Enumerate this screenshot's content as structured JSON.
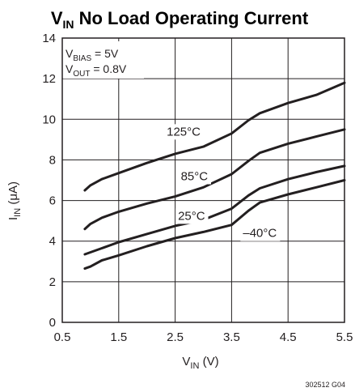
{
  "chart_data": {
    "type": "line",
    "title": {
      "main": "V",
      "sub": "IN",
      "rest": " No Load Operating Current"
    },
    "xlabel": {
      "main": "V",
      "sub": "IN",
      "rest": " (V)"
    },
    "ylabel": {
      "main": "I",
      "sub": "IN",
      "rest": " (μA)"
    },
    "xlim": [
      0.5,
      5.5
    ],
    "ylim": [
      0,
      14
    ],
    "xticks": [
      "0.5",
      "1.5",
      "2.5",
      "3.5",
      "4.5",
      "5.5"
    ],
    "yticks": [
      "0",
      "2",
      "4",
      "6",
      "8",
      "10",
      "12",
      "14"
    ],
    "grid": true,
    "conditions": [
      {
        "main": "V",
        "sub": "BIAS",
        "rest": " = 5V"
      },
      {
        "main": "V",
        "sub": "OUT",
        "rest": " = 0.8V"
      }
    ],
    "series": [
      {
        "name": "125°C",
        "x": [
          0.9,
          1.0,
          1.2,
          1.5,
          2.0,
          2.5,
          3.0,
          3.5,
          3.8,
          4.0,
          4.5,
          5.0,
          5.5
        ],
        "y": [
          6.5,
          6.75,
          7.05,
          7.35,
          7.85,
          8.3,
          8.65,
          9.3,
          9.95,
          10.3,
          10.8,
          11.2,
          11.8
        ]
      },
      {
        "name": "85°C",
        "x": [
          0.9,
          1.0,
          1.2,
          1.5,
          2.0,
          2.5,
          3.0,
          3.5,
          3.8,
          4.0,
          4.5,
          5.0,
          5.5
        ],
        "y": [
          4.6,
          4.85,
          5.15,
          5.45,
          5.85,
          6.2,
          6.65,
          7.3,
          7.95,
          8.35,
          8.8,
          9.15,
          9.5
        ]
      },
      {
        "name": "25°C",
        "x": [
          0.9,
          1.0,
          1.2,
          1.5,
          2.0,
          2.5,
          3.0,
          3.5,
          3.8,
          4.0,
          4.5,
          5.0,
          5.5
        ],
        "y": [
          3.35,
          3.45,
          3.65,
          3.95,
          4.35,
          4.75,
          5.05,
          5.6,
          6.25,
          6.6,
          7.05,
          7.4,
          7.7
        ]
      },
      {
        "name": "–40°C",
        "x": [
          0.9,
          1.0,
          1.2,
          1.5,
          2.0,
          2.5,
          3.0,
          3.5,
          3.8,
          4.0,
          4.5,
          5.0,
          5.5
        ],
        "y": [
          2.65,
          2.75,
          3.05,
          3.3,
          3.75,
          4.15,
          4.45,
          4.8,
          5.5,
          5.9,
          6.3,
          6.65,
          7.0
        ]
      }
    ],
    "series_labels": [
      {
        "text": "125°C",
        "x": 2.35,
        "y": 9.2
      },
      {
        "text": "85°C",
        "x": 2.6,
        "y": 7.0
      },
      {
        "text": "25°C",
        "x": 2.55,
        "y": 5.05
      },
      {
        "text": "–40°C",
        "x": 3.7,
        "y": 4.2
      }
    ],
    "line_color": "#231f20",
    "grid_color": "#231f20",
    "footer_code": "302512 G04"
  }
}
